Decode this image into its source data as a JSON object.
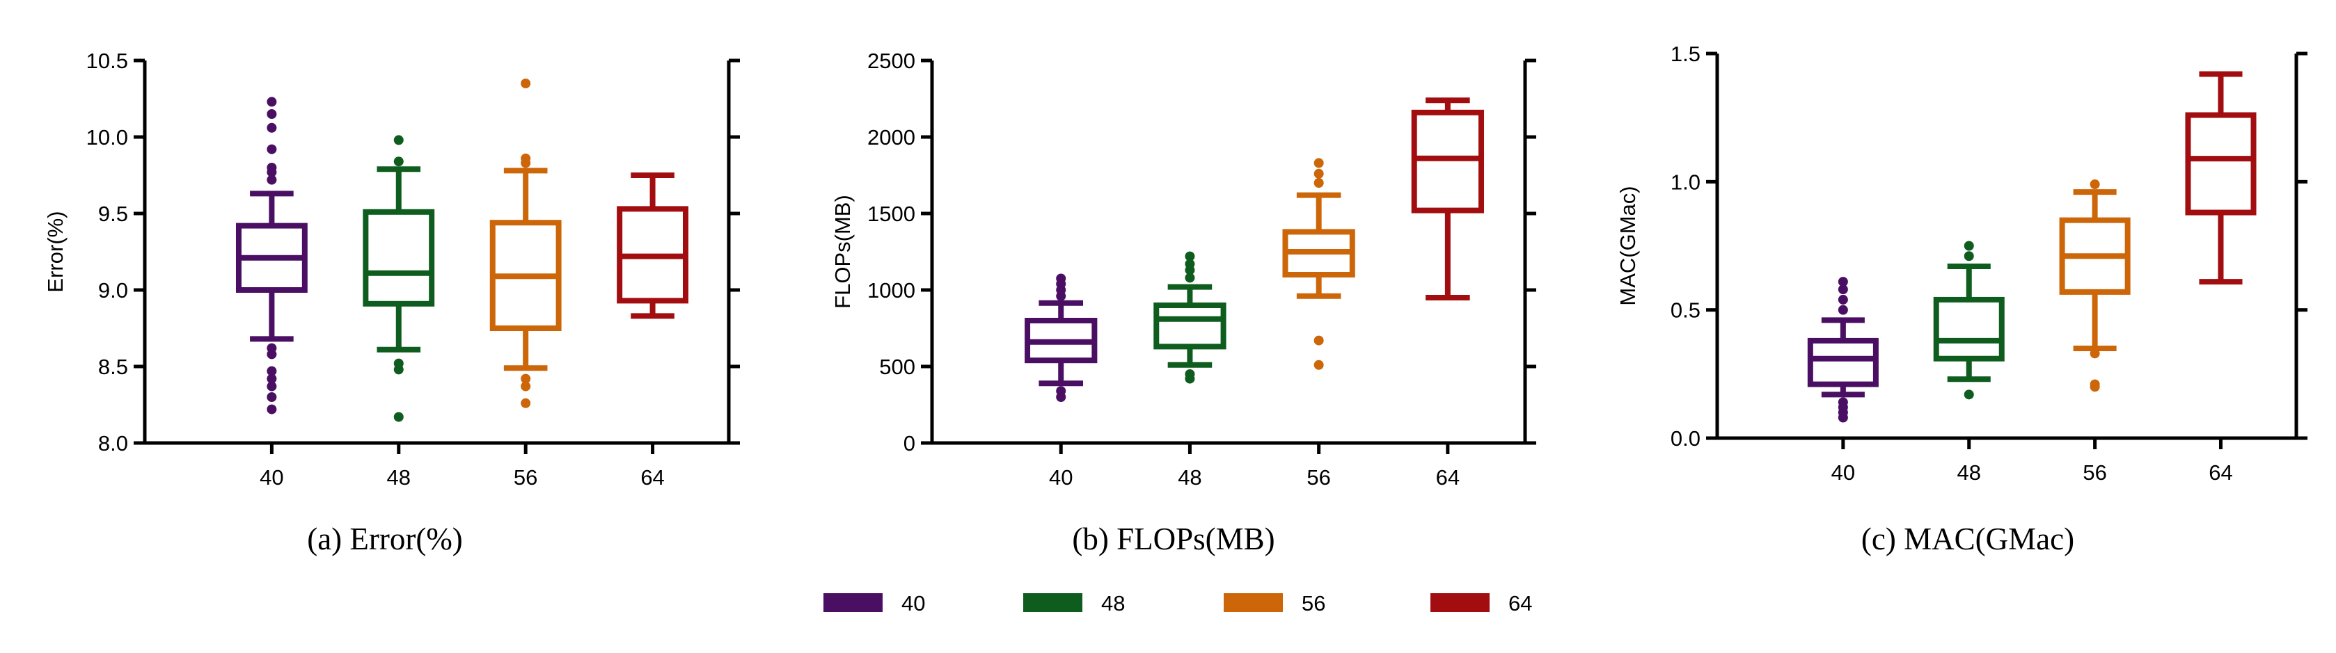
{
  "categories": [
    "40",
    "48",
    "56",
    "64"
  ],
  "colors": {
    "40": "#4a0f63",
    "48": "#0e5c1e",
    "56": "#cc6608",
    "64": "#a20d10"
  },
  "legend": {
    "entries": [
      {
        "label": "40",
        "color": "#4a0f63"
      },
      {
        "label": "48",
        "color": "#0e5c1e"
      },
      {
        "label": "56",
        "color": "#cc6608"
      },
      {
        "label": "64",
        "color": "#a20d10"
      }
    ]
  },
  "chart_data": [
    {
      "type": "box",
      "caption": "(a)  Error(%)",
      "ylabel": "Error(%)",
      "ylim": [
        8.0,
        10.5
      ],
      "yticks": [
        "8.0",
        "8.5",
        "9.0",
        "9.5",
        "10.0",
        "10.5"
      ],
      "categories": [
        "40",
        "48",
        "56",
        "64"
      ],
      "boxes": [
        {
          "category": "40",
          "whisker_low": 8.68,
          "q1": 9.0,
          "median": 9.21,
          "q3": 9.42,
          "whisker_high": 9.63,
          "outliers": [
            8.62,
            8.58,
            8.47,
            8.42,
            8.37,
            8.3,
            8.22,
            9.72,
            9.77,
            9.8,
            9.92,
            10.06,
            10.15,
            10.23
          ]
        },
        {
          "category": "48",
          "whisker_low": 8.61,
          "q1": 8.91,
          "median": 9.11,
          "q3": 9.51,
          "whisker_high": 9.79,
          "outliers": [
            8.52,
            8.48,
            8.17,
            9.84,
            9.98
          ]
        },
        {
          "category": "56",
          "whisker_low": 8.49,
          "q1": 8.75,
          "median": 9.09,
          "q3": 9.44,
          "whisker_high": 9.78,
          "outliers": [
            8.42,
            8.37,
            8.26,
            9.83,
            9.86,
            10.35
          ]
        },
        {
          "category": "64",
          "whisker_low": 8.83,
          "q1": 8.93,
          "median": 9.22,
          "q3": 9.53,
          "whisker_high": 9.75,
          "outliers": []
        }
      ]
    },
    {
      "type": "box",
      "caption": "(b)  FLOPs(MB)",
      "ylabel": "FLOPs(MB)",
      "ylim": [
        0,
        2500
      ],
      "yticks": [
        "0",
        "500",
        "1000",
        "1500",
        "2000",
        "2500"
      ],
      "categories": [
        "40",
        "48",
        "56",
        "64"
      ],
      "boxes": [
        {
          "category": "40",
          "whisker_low": 390,
          "q1": 540,
          "median": 660,
          "q3": 800,
          "whisker_high": 915,
          "outliers": [
            340,
            300,
            960,
            1000,
            1040,
            1075
          ]
        },
        {
          "category": "48",
          "whisker_low": 510,
          "q1": 630,
          "median": 810,
          "q3": 900,
          "whisker_high": 1020,
          "outliers": [
            450,
            420,
            1080,
            1130,
            1170,
            1220
          ]
        },
        {
          "category": "56",
          "whisker_low": 960,
          "q1": 1100,
          "median": 1250,
          "q3": 1380,
          "whisker_high": 1620,
          "outliers": [
            670,
            510,
            1700,
            1760,
            1830
          ]
        },
        {
          "category": "64",
          "whisker_low": 950,
          "q1": 1520,
          "median": 1860,
          "q3": 2160,
          "whisker_high": 2240,
          "outliers": []
        }
      ]
    },
    {
      "type": "box",
      "caption": "(c)  MAC(GMac)",
      "ylabel": "MAC(GMac)",
      "ylim": [
        0.0,
        1.5
      ],
      "yticks": [
        "0.0",
        "0.5",
        "1.0",
        "1.5"
      ],
      "categories": [
        "40",
        "48",
        "56",
        "64"
      ],
      "boxes": [
        {
          "category": "40",
          "whisker_low": 0.17,
          "q1": 0.21,
          "median": 0.31,
          "q3": 0.38,
          "whisker_high": 0.46,
          "outliers": [
            0.14,
            0.12,
            0.1,
            0.08,
            0.5,
            0.54,
            0.58,
            0.61
          ]
        },
        {
          "category": "48",
          "whisker_low": 0.23,
          "q1": 0.31,
          "median": 0.38,
          "q3": 0.54,
          "whisker_high": 0.67,
          "outliers": [
            0.17,
            0.71,
            0.75
          ]
        },
        {
          "category": "56",
          "whisker_low": 0.35,
          "q1": 0.57,
          "median": 0.71,
          "q3": 0.85,
          "whisker_high": 0.96,
          "outliers": [
            0.33,
            0.21,
            0.2,
            0.99
          ]
        },
        {
          "category": "64",
          "whisker_low": 0.61,
          "q1": 0.88,
          "median": 1.09,
          "q3": 1.26,
          "whisker_high": 1.42,
          "outliers": []
        }
      ]
    }
  ]
}
